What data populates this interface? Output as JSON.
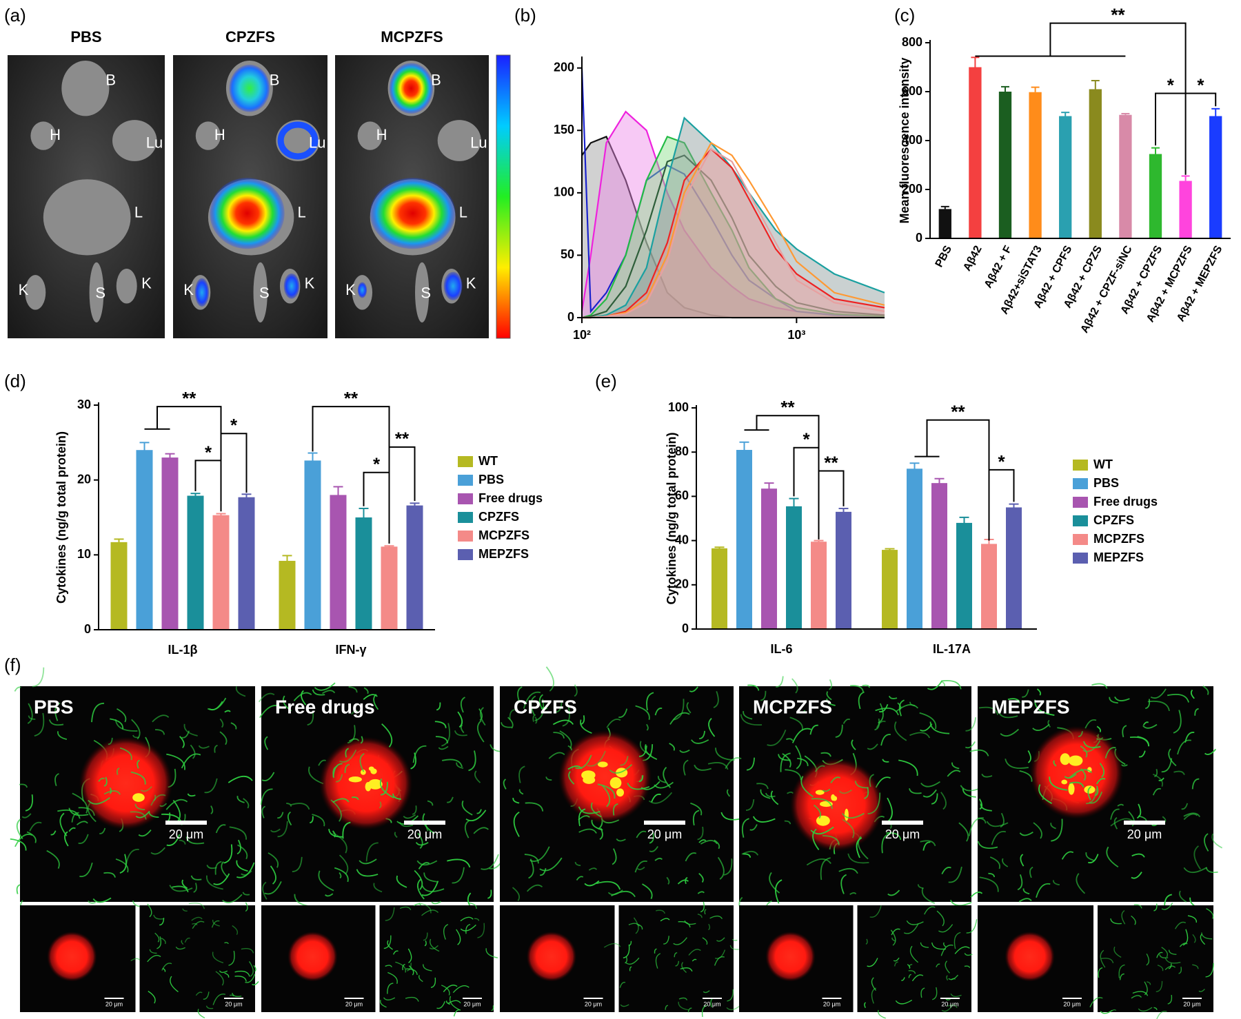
{
  "panel_labels": [
    "(a)",
    "(b)",
    "(c)",
    "(d)",
    "(e)",
    "(f)"
  ],
  "panel_a": {
    "titles": [
      "PBS",
      "CPZFS",
      "MCPZFS"
    ],
    "organ_labels": [
      "B",
      "H",
      "Lu",
      "L",
      "K",
      "S",
      "K"
    ]
  },
  "chart_data": [
    {
      "type": "line",
      "xscale": "log",
      "x": [
        100,
        110,
        130,
        160,
        200,
        250,
        300,
        400,
        500,
        600,
        800,
        1000,
        1500,
        2570
      ],
      "xlim": [
        100,
        2570
      ],
      "xticks": [
        {
          "value": 100,
          "label": "10²"
        },
        {
          "value": 1000,
          "label": "10³"
        }
      ],
      "ylim": [
        0,
        207
      ],
      "yticks": [
        0,
        50,
        100,
        150,
        200
      ],
      "series": [
        {
          "color": "#111111",
          "fill": "#9a9a9a",
          "values": [
            130,
            140,
            145,
            110,
            60,
            20,
            8,
            2,
            0,
            0,
            0,
            0,
            0,
            0
          ]
        },
        {
          "color": "#ee22dd",
          "fill": "#ee88e8",
          "values": [
            5,
            50,
            140,
            165,
            150,
            100,
            70,
            40,
            25,
            15,
            8,
            5,
            2,
            1
          ]
        },
        {
          "color": "#1a22cc",
          "values": [
            200,
            5,
            20,
            50,
            110,
            122,
            115,
            80,
            50,
            30,
            15,
            5,
            2,
            1
          ]
        },
        {
          "color": "#22bb44",
          "fill": "#88dd88",
          "values": [
            0,
            2,
            15,
            50,
            110,
            145,
            140,
            100,
            70,
            40,
            15,
            8,
            3,
            1
          ]
        },
        {
          "color": "#2e5e3a",
          "values": [
            0,
            1,
            5,
            25,
            70,
            125,
            130,
            110,
            80,
            50,
            25,
            12,
            5,
            2
          ]
        },
        {
          "color": "#1aa0a0",
          "fill": "#8a9a9a",
          "values": [
            0,
            0,
            2,
            10,
            40,
            110,
            160,
            140,
            120,
            100,
            70,
            55,
            35,
            20
          ]
        },
        {
          "color": "#ee2222",
          "fill": "#ee9999",
          "values": [
            0,
            0,
            1,
            5,
            20,
            60,
            110,
            135,
            120,
            95,
            55,
            35,
            15,
            8
          ]
        },
        {
          "color": "#ff9933",
          "values": [
            0,
            0,
            1,
            4,
            15,
            50,
            100,
            140,
            130,
            110,
            75,
            45,
            20,
            10
          ]
        },
        {
          "color": "#e8a0a0",
          "values": [
            0,
            0,
            1,
            3,
            12,
            45,
            95,
            135,
            125,
            100,
            60,
            30,
            12,
            5
          ]
        }
      ]
    },
    {
      "type": "bar",
      "y_label": "Mean fluorescence intensity",
      "categories": [
        "PBS",
        "Aβ42",
        "Aβ42 + F",
        "Aβ42+siSTAT3",
        "Aβ42 + CPFS",
        "Aβ42 + CPZS",
        "Aβ42 + CPZF-siNC",
        "Aβ42 + CPZFS",
        "Aβ42 + MCPZFS",
        "Aβ42 + MEPZFS"
      ],
      "values": [
        120,
        700,
        600,
        598,
        500,
        610,
        505,
        345,
        235,
        500
      ],
      "errors": [
        10,
        40,
        20,
        20,
        15,
        35,
        5,
        25,
        20,
        30
      ],
      "colors": [
        "#111111",
        "#f44040",
        "#1b5e20",
        "#ff8c1a",
        "#2aa0b0",
        "#8a8a1e",
        "#d88aa8",
        "#2eb82e",
        "#ff44dd",
        "#1a3cff"
      ],
      "ylim": [
        0,
        800
      ],
      "yticks": [
        0,
        200,
        400,
        600,
        800
      ],
      "annotations": [
        "**",
        "*",
        "*"
      ]
    },
    {
      "type": "grouped_bar",
      "y_label": "Cytokines (ng/g total protein)",
      "categories": [
        "IL-1β",
        "IFN-γ"
      ],
      "ylim": [
        0,
        30
      ],
      "yticks": [
        0,
        10,
        20,
        30
      ],
      "series": [
        {
          "name": "WT",
          "color": "#b5b922",
          "values": [
            11.7,
            9.2
          ],
          "errors": [
            0.4,
            0.7
          ]
        },
        {
          "name": "PBS",
          "color": "#4aa0d8",
          "values": [
            24,
            22.6
          ],
          "errors": [
            1,
            1
          ]
        },
        {
          "name": "Free drugs",
          "color": "#a855b0",
          "values": [
            23,
            18
          ],
          "errors": [
            0.5,
            1.1
          ]
        },
        {
          "name": "CPZFS",
          "color": "#1a8f9a",
          "values": [
            17.9,
            15
          ],
          "errors": [
            0.3,
            1.2
          ]
        },
        {
          "name": "MCPZFS",
          "color": "#f48a88",
          "values": [
            15.3,
            11.1
          ],
          "errors": [
            0.2,
            0.1
          ]
        },
        {
          "name": "MEPZFS",
          "color": "#5b5fb0",
          "values": [
            17.7,
            16.6
          ],
          "errors": [
            0.4,
            0.3
          ]
        }
      ],
      "annotations": [
        "**",
        "*",
        "*",
        "**",
        "*",
        "**"
      ]
    },
    {
      "type": "grouped_bar",
      "y_label": "Cytokines (ng/g total protein)",
      "categories": [
        "IL-6",
        "IL-17A"
      ],
      "ylim": [
        0,
        100
      ],
      "yticks": [
        0,
        20,
        40,
        60,
        80,
        100
      ],
      "series": [
        {
          "name": "WT",
          "color": "#b5b922",
          "values": [
            36.5,
            35.8
          ],
          "errors": [
            0.5,
            0.5
          ]
        },
        {
          "name": "PBS",
          "color": "#4aa0d8",
          "values": [
            81,
            72.5
          ],
          "errors": [
            3.5,
            2.5
          ]
        },
        {
          "name": "Free drugs",
          "color": "#a855b0",
          "values": [
            63.5,
            66
          ],
          "errors": [
            2.5,
            2
          ]
        },
        {
          "name": "CPZFS",
          "color": "#1a8f9a",
          "values": [
            55.5,
            48
          ],
          "errors": [
            3.5,
            2.5
          ]
        },
        {
          "name": "MCPZFS",
          "color": "#f48a88",
          "values": [
            39.5,
            38.5
          ],
          "errors": [
            0.5,
            2
          ]
        },
        {
          "name": "MEPZFS",
          "color": "#5b5fb0",
          "values": [
            53,
            55
          ],
          "errors": [
            1.5,
            1.5
          ]
        }
      ],
      "annotations": [
        "**",
        "*",
        "**",
        "**",
        "*"
      ]
    }
  ],
  "panel_f": {
    "labels": [
      "PBS",
      "Free drugs",
      "CPZFS",
      "MCPZFS",
      "MEPZFS"
    ],
    "scale_bar": "20 μm"
  }
}
